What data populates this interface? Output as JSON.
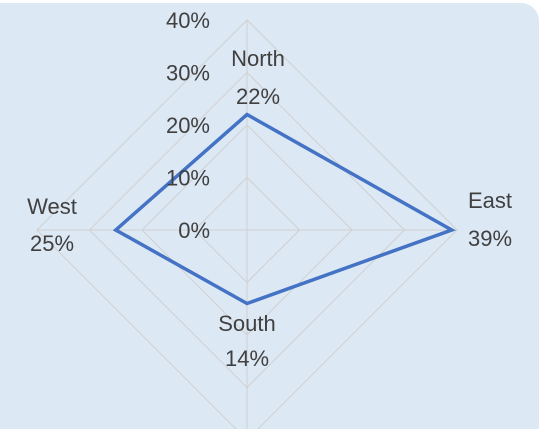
{
  "chart_data": {
    "type": "radar",
    "categories": [
      "North",
      "East",
      "South",
      "West"
    ],
    "values": [
      22,
      39,
      14,
      25
    ],
    "value_labels": [
      "22%",
      "39%",
      "14%",
      "25%"
    ],
    "color": "#4472c4",
    "rlim": [
      0,
      40
    ],
    "rticks": [
      {
        "value": 0,
        "label": "0%"
      },
      {
        "value": 10,
        "label": "10%"
      },
      {
        "value": 20,
        "label": "20%"
      },
      {
        "value": 30,
        "label": "30%"
      },
      {
        "value": 40,
        "label": "40%"
      }
    ],
    "grid": true
  }
}
